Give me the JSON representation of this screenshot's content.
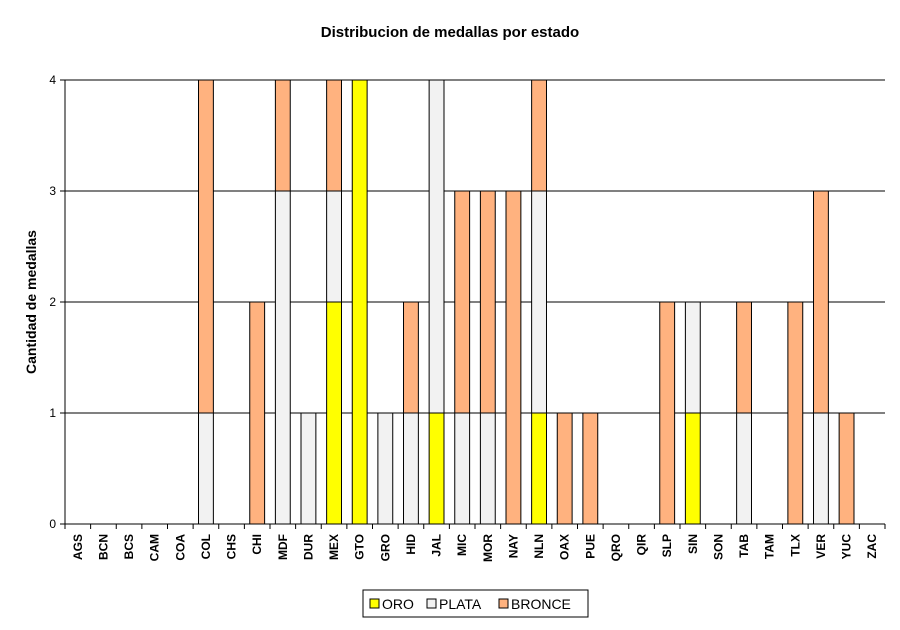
{
  "chart_data": {
    "type": "bar",
    "stacked": true,
    "title": "Distribucion de medallas por estado",
    "xlabel": "",
    "ylabel": "Cantidad de medallas",
    "ylim": [
      0,
      4
    ],
    "yticks": [
      "0",
      "1",
      "2",
      "3",
      "4"
    ],
    "grid": true,
    "legend_position": "bottom",
    "categories": [
      "AGS",
      "BCN",
      "BCS",
      "CAM",
      "COA",
      "COL",
      "CHS",
      "CHI",
      "MDF",
      "DUR",
      "MEX",
      "GTO",
      "GRO",
      "HID",
      "JAL",
      "MIC",
      "MOR",
      "NAY",
      "NLN",
      "OAX",
      "PUE",
      "QRO",
      "QIR",
      "SLP",
      "SIN",
      "SON",
      "TAB",
      "TAM",
      "TLX",
      "VER",
      "YUC",
      "ZAC"
    ],
    "series": [
      {
        "name": "ORO",
        "color": "#FFFF00",
        "values": [
          0,
          0,
          0,
          0,
          0,
          0,
          0,
          0,
          0,
          0,
          2,
          4,
          0,
          0,
          1,
          0,
          0,
          0,
          1,
          0,
          0,
          0,
          0,
          0,
          1,
          0,
          0,
          0,
          0,
          0,
          0,
          0
        ]
      },
      {
        "name": "PLATA",
        "color": "#F2F2F2",
        "values": [
          0,
          0,
          0,
          0,
          0,
          1,
          0,
          0,
          3,
          1,
          1,
          0,
          1,
          1,
          3,
          1,
          1,
          0,
          2,
          0,
          0,
          0,
          0,
          0,
          1,
          0,
          1,
          0,
          0,
          1,
          0,
          0
        ]
      },
      {
        "name": "BRONCE",
        "color": "#FFB27F",
        "values": [
          0,
          0,
          0,
          0,
          0,
          3,
          0,
          2,
          1,
          0,
          1,
          0,
          0,
          1,
          0,
          2,
          2,
          3,
          1,
          1,
          1,
          0,
          0,
          2,
          0,
          0,
          1,
          0,
          2,
          2,
          1,
          0
        ]
      }
    ]
  }
}
